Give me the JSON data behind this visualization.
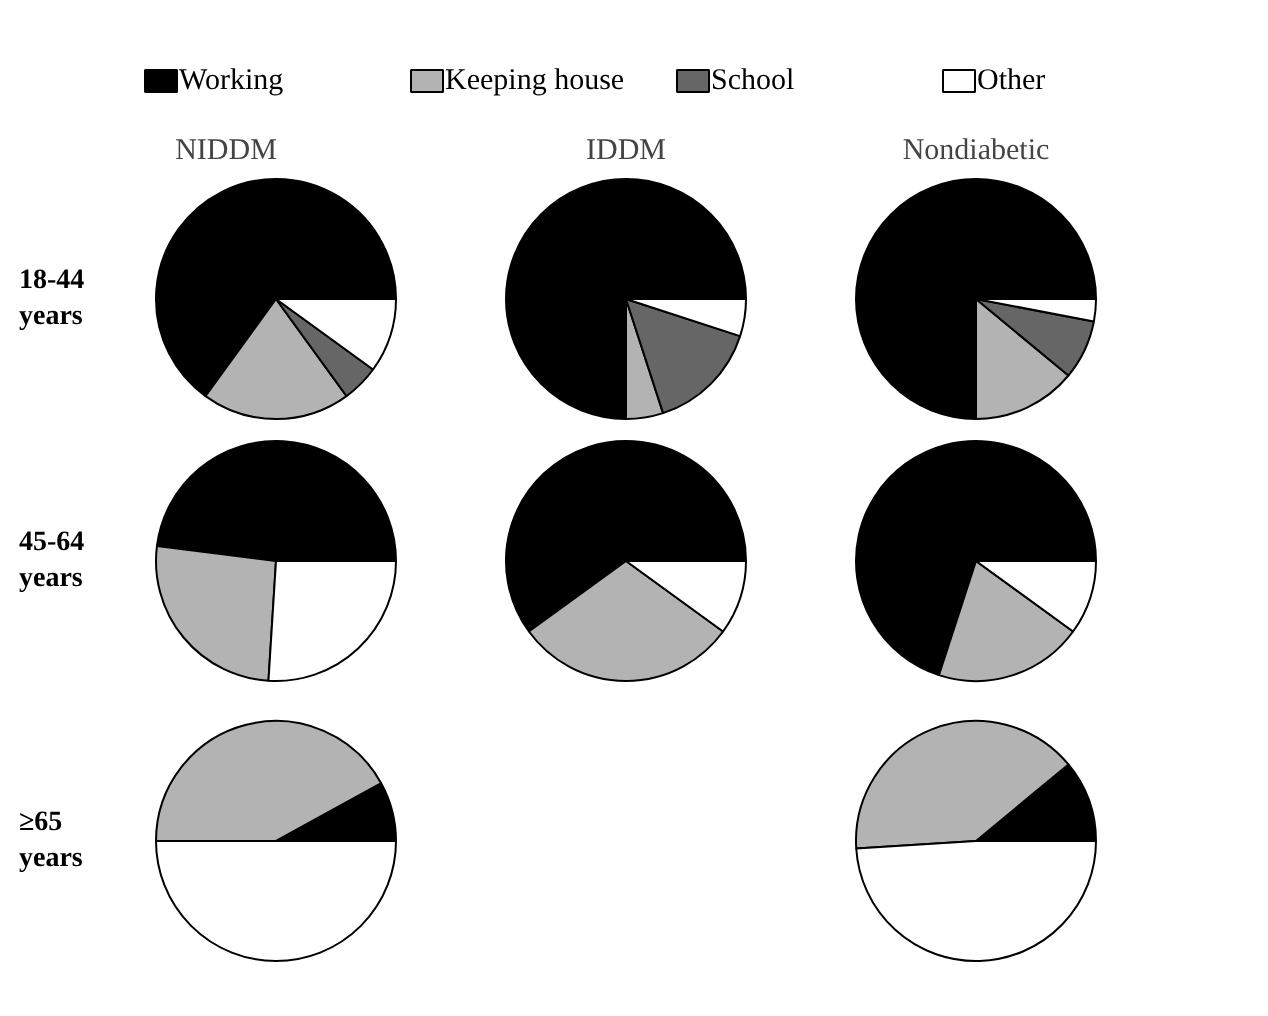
{
  "chart_data": [
    {
      "type": "pie",
      "title": "NIDDM",
      "ylabel": "18-44 years",
      "legend": "top",
      "categories": [
        "Working",
        "Keeping house",
        "School",
        "Other"
      ],
      "values": [
        65,
        20,
        5,
        10
      ],
      "colors": [
        "#000000",
        "#b3b3b3",
        "#666666",
        "#ffffff"
      ]
    },
    {
      "type": "pie",
      "title": "IDDM",
      "values": [
        75,
        5,
        15,
        5
      ],
      "colors": [
        "#000000",
        "#b3b3b3",
        "#666666",
        "#ffffff"
      ]
    },
    {
      "type": "pie",
      "title": "Nondiabetic",
      "values": [
        75,
        14,
        8,
        3
      ],
      "colors": [
        "#000000",
        "#b3b3b3",
        "#666666",
        "#ffffff"
      ]
    },
    {
      "type": "pie",
      "ylabel": "45-64 years",
      "values": [
        48,
        26,
        null,
        26
      ],
      "colors": [
        "#000000",
        "#b3b3b3",
        "#666666",
        "#ffffff"
      ]
    },
    {
      "type": "pie",
      "values": [
        60,
        30,
        null,
        10
      ],
      "colors": [
        "#000000",
        "#b3b3b3",
        "#666666",
        "#ffffff"
      ]
    },
    {
      "type": "pie",
      "values": [
        70,
        20,
        null,
        10
      ],
      "colors": [
        "#000000",
        "#b3b3b3",
        "#666666",
        "#ffffff"
      ]
    },
    {
      "type": "pie",
      "ylabel": "≥65 years",
      "values": [
        8,
        42,
        null,
        50
      ],
      "colors": [
        "#000000",
        "#b3b3b3",
        "#666666",
        "#ffffff"
      ]
    },
    {
      "type": "pie",
      "values": [
        11,
        40,
        null,
        49
      ],
      "colors": [
        "#000000",
        "#b3b3b3",
        "#666666",
        "#ffffff"
      ]
    }
  ]
}
